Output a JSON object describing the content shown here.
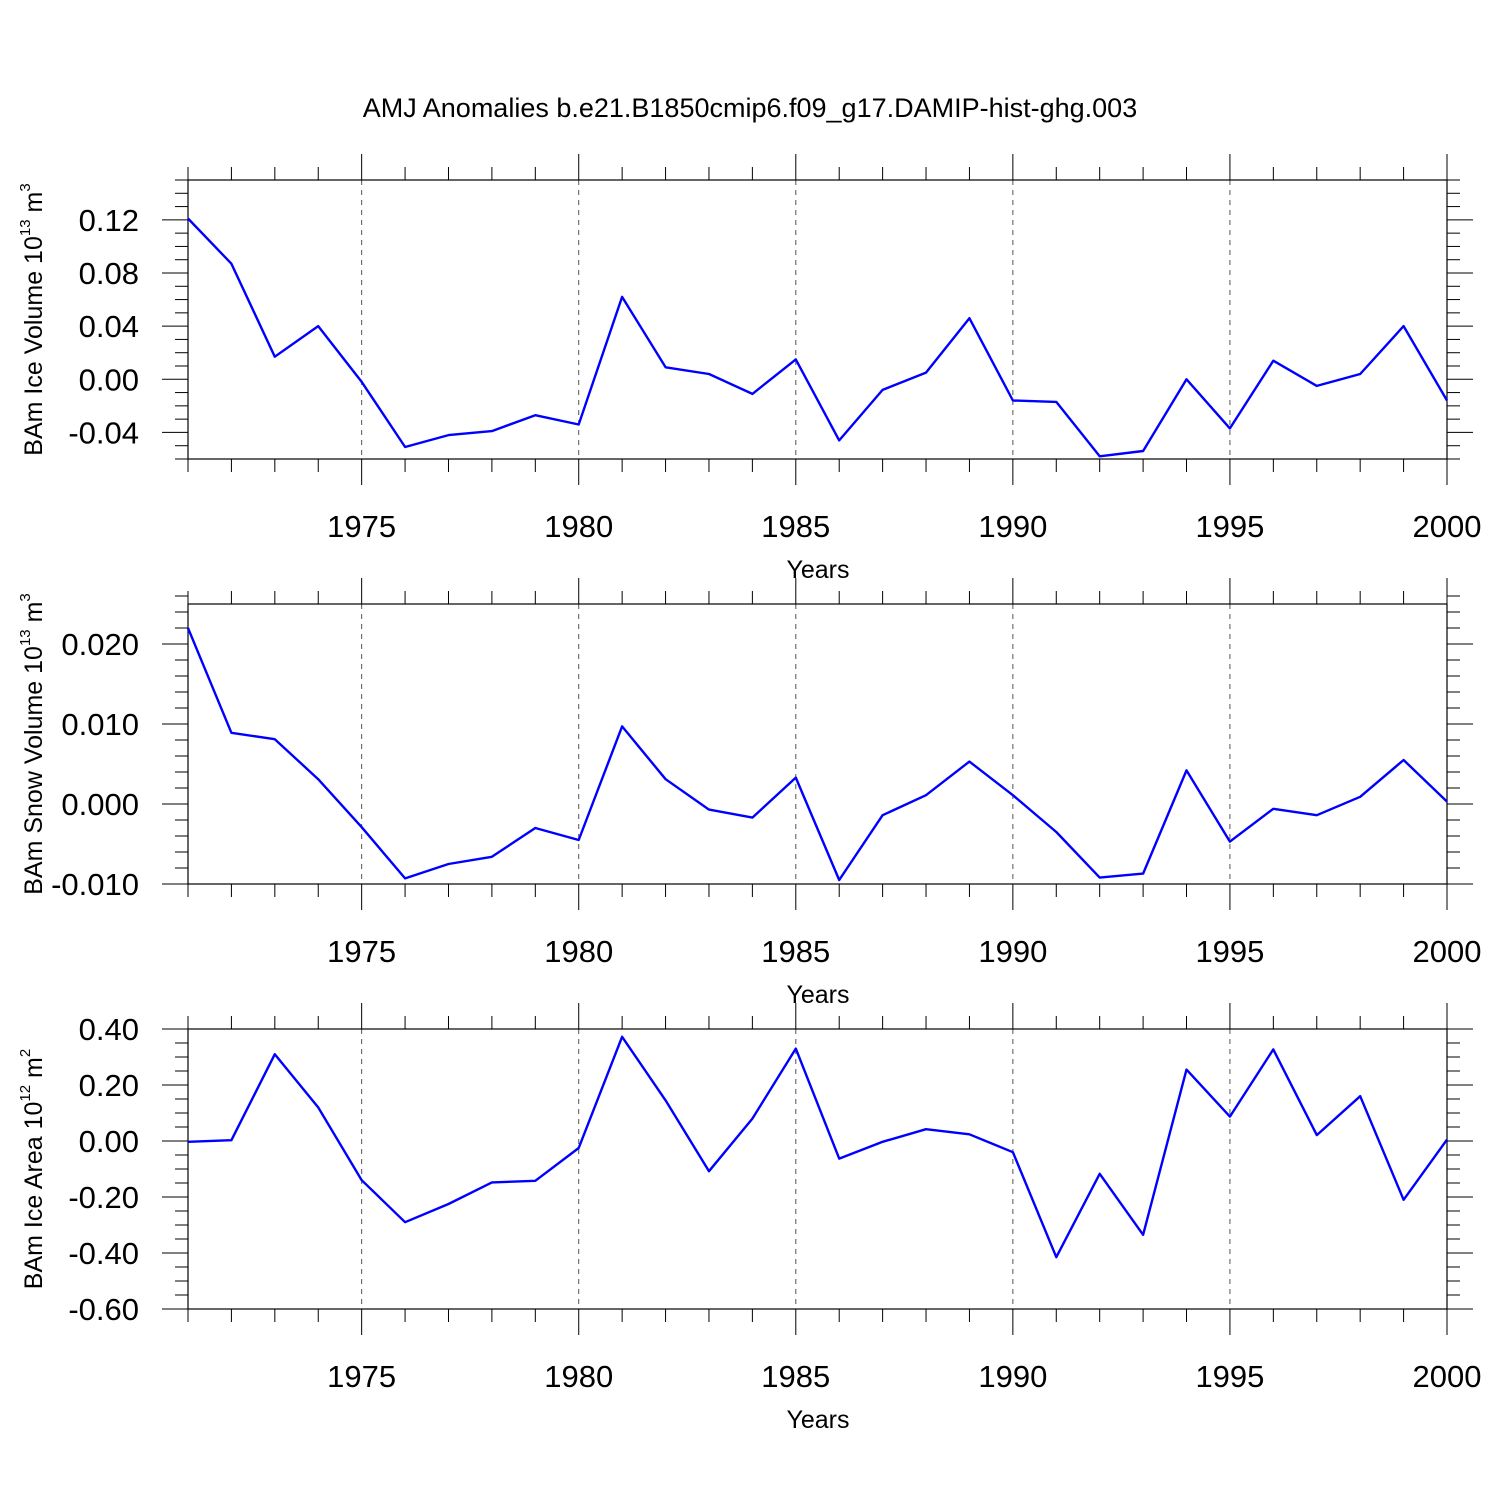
{
  "chart_data": {
    "title": "AMJ Anomalies b.e21.B1850cmip6.f09_g17.DAMIP-hist-ghg.003",
    "type": "line",
    "line_color": "#0000ff",
    "grid": "dashed vertical lines at labeled years",
    "panels": [
      {
        "type": "line",
        "ylabel": {
          "text": "BAm Ice Volume 10",
          "sup": "13",
          "unit": " m",
          "unit_sup": "3"
        },
        "xlabel": "Years",
        "xlim": [
          1971,
          2000
        ],
        "xticks": [
          1975,
          1980,
          1985,
          1990,
          1995,
          2000
        ],
        "xtick_labels": [
          "1975",
          "1980",
          "1985",
          "1990",
          "1995",
          "2000"
        ],
        "ylim": [
          -0.06,
          0.15
        ],
        "yticks": [
          -0.04,
          0.0,
          0.04,
          0.08,
          0.12
        ],
        "ytick_labels": [
          "-0.04",
          "0.00",
          "0.04",
          "0.08",
          "0.12"
        ],
        "yminor_step": 0.01,
        "x": [
          1971,
          1972,
          1973,
          1974,
          1975,
          1976,
          1977,
          1978,
          1979,
          1980,
          1981,
          1982,
          1983,
          1984,
          1985,
          1986,
          1987,
          1988,
          1989,
          1990,
          1991,
          1992,
          1993,
          1994,
          1995,
          1996,
          1997,
          1998,
          1999,
          2000
        ],
        "values": [
          0.121,
          0.087,
          0.017,
          0.04,
          -0.002,
          -0.051,
          -0.042,
          -0.039,
          -0.027,
          -0.034,
          0.062,
          0.009,
          0.004,
          -0.011,
          0.015,
          -0.046,
          -0.008,
          0.005,
          0.046,
          -0.016,
          -0.017,
          -0.058,
          -0.054,
          0.0,
          -0.037,
          0.014,
          -0.005,
          0.004,
          0.04,
          -0.016
        ]
      },
      {
        "type": "line",
        "ylabel": {
          "text": "BAm Snow Volume 10",
          "sup": "13",
          "unit": " m",
          "unit_sup": "3"
        },
        "xlabel": "Years",
        "xlim": [
          1971,
          2000
        ],
        "xticks": [
          1975,
          1980,
          1985,
          1990,
          1995,
          2000
        ],
        "xtick_labels": [
          "1975",
          "1980",
          "1985",
          "1990",
          "1995",
          "2000"
        ],
        "ylim": [
          -0.01,
          0.025
        ],
        "yticks": [
          -0.01,
          0.0,
          0.01,
          0.02
        ],
        "ytick_labels": [
          "-0.010",
          "0.000",
          "0.010",
          "0.020"
        ],
        "yminor_step": 0.002,
        "x": [
          1971,
          1972,
          1973,
          1974,
          1975,
          1976,
          1977,
          1978,
          1979,
          1980,
          1981,
          1982,
          1983,
          1984,
          1985,
          1986,
          1987,
          1988,
          1989,
          1990,
          1991,
          1992,
          1993,
          1994,
          1995,
          1996,
          1997,
          1998,
          1999,
          2000
        ],
        "values": [
          0.022,
          0.0089,
          0.0081,
          0.0031,
          -0.0029,
          -0.0093,
          -0.0075,
          -0.0066,
          -0.003,
          -0.0045,
          0.0097,
          0.0031,
          -0.0007,
          -0.0017,
          0.0033,
          -0.0095,
          -0.0014,
          0.0011,
          0.0053,
          0.0011,
          -0.0035,
          -0.0092,
          -0.0087,
          0.0042,
          -0.0047,
          -0.0006,
          -0.0014,
          0.0009,
          0.0055,
          0.0003
        ]
      },
      {
        "type": "line",
        "ylabel": {
          "text": "BAm Ice Area 10",
          "sup": "12",
          "unit": " m",
          "unit_sup": "2"
        },
        "xlabel": "Years",
        "xlim": [
          1971,
          2000
        ],
        "xticks": [
          1975,
          1980,
          1985,
          1990,
          1995,
          2000
        ],
        "xtick_labels": [
          "1975",
          "1980",
          "1985",
          "1990",
          "1995",
          "2000"
        ],
        "ylim": [
          -0.6,
          0.4
        ],
        "yticks": [
          -0.6,
          -0.4,
          -0.2,
          0.0,
          0.2,
          0.4
        ],
        "ytick_labels": [
          "-0.60",
          "-0.40",
          "-0.20",
          "0.00",
          "0.20",
          "0.40"
        ],
        "yminor_step": 0.05,
        "x": [
          1971,
          1972,
          1973,
          1974,
          1975,
          1976,
          1977,
          1978,
          1979,
          1980,
          1981,
          1982,
          1983,
          1984,
          1985,
          1986,
          1987,
          1988,
          1989,
          1990,
          1991,
          1992,
          1993,
          1994,
          1995,
          1996,
          1997,
          1998,
          1999,
          2000
        ],
        "values": [
          -0.003,
          0.003,
          0.31,
          0.12,
          -0.14,
          -0.29,
          -0.225,
          -0.148,
          -0.142,
          -0.025,
          0.372,
          0.145,
          -0.108,
          0.08,
          0.33,
          -0.063,
          -0.003,
          0.042,
          0.024,
          -0.04,
          -0.415,
          -0.117,
          -0.335,
          0.255,
          0.087,
          0.327,
          0.021,
          0.16,
          -0.21,
          0.005
        ]
      }
    ]
  }
}
